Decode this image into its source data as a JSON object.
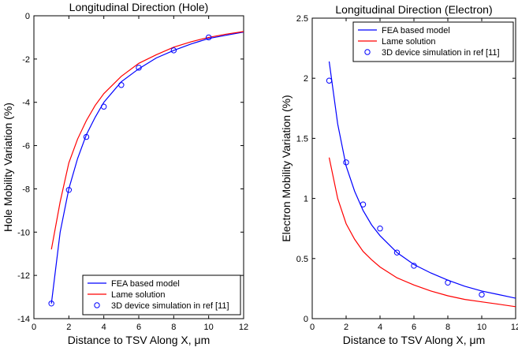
{
  "chart_data": [
    {
      "type": "line",
      "title": "Longitudinal Direction (Hole)",
      "xlabel": "Distance to TSV Along X, μm",
      "ylabel": "Hole Mobility Variation (%)",
      "xlim": [
        0,
        12
      ],
      "ylim": [
        -14,
        0
      ],
      "xticks": [
        0,
        2,
        4,
        6,
        8,
        10,
        12
      ],
      "yticks": [
        0,
        -2,
        -4,
        -6,
        -8,
        -10,
        -12,
        -14
      ],
      "xtick_labels": [
        "0",
        "2",
        "4",
        "6",
        "8",
        "10",
        "12"
      ],
      "ytick_labels": [
        "0",
        "-2",
        "-4",
        "-6",
        "-8",
        "-10",
        "-12",
        "-14"
      ],
      "grid": false,
      "legend_position": "bottom-right",
      "series": [
        {
          "name": "FEA based model",
          "style": "line",
          "color": "#0000ff",
          "x": [
            1,
            1.5,
            2,
            2.5,
            3,
            3.5,
            4,
            5,
            6,
            7,
            8,
            9,
            10,
            11,
            12
          ],
          "y": [
            -13.3,
            -10.0,
            -8.0,
            -6.6,
            -5.5,
            -4.7,
            -4.0,
            -3.05,
            -2.45,
            -1.95,
            -1.6,
            -1.3,
            -1.05,
            -0.9,
            -0.75
          ]
        },
        {
          "name": "Lame solution",
          "style": "line",
          "color": "#ff0000",
          "x": [
            1,
            1.5,
            2,
            2.5,
            3,
            3.5,
            4,
            5,
            6,
            7,
            8,
            9,
            10,
            11,
            12
          ],
          "y": [
            -10.8,
            -8.6,
            -6.8,
            -5.7,
            -4.85,
            -4.15,
            -3.6,
            -2.8,
            -2.2,
            -1.8,
            -1.45,
            -1.2,
            -1.0,
            -0.85,
            -0.73
          ]
        },
        {
          "name": "3D device simulation in ref [11]",
          "style": "marker",
          "color": "#0000ff",
          "x": [
            1,
            2,
            3,
            4,
            5,
            6,
            8,
            10
          ],
          "y": [
            -13.3,
            -8.05,
            -5.6,
            -4.2,
            -3.2,
            -2.4,
            -1.6,
            -1.0
          ]
        }
      ]
    },
    {
      "type": "line",
      "title": "Longitudinal Direction (Electron)",
      "xlabel": "Distance to TSV Along X, μm",
      "ylabel": "Electron Mobility Variation (%)",
      "xlim": [
        0,
        12
      ],
      "ylim": [
        0,
        2.5
      ],
      "xticks": [
        0,
        2,
        4,
        6,
        8,
        10,
        12
      ],
      "yticks": [
        0,
        0.5,
        1,
        1.5,
        2,
        2.5
      ],
      "xtick_labels": [
        "0",
        "2",
        "4",
        "6",
        "8",
        "10",
        "12"
      ],
      "ytick_labels": [
        "0",
        "0.5",
        "1",
        "1.5",
        "2",
        "2.5"
      ],
      "grid": false,
      "legend_position": "top-right",
      "series": [
        {
          "name": "FEA based model",
          "style": "line",
          "color": "#0000ff",
          "x": [
            1,
            1.5,
            2,
            2.5,
            3,
            3.5,
            4,
            5,
            6,
            7,
            8,
            9,
            10,
            11,
            12
          ],
          "y": [
            2.14,
            1.62,
            1.27,
            1.06,
            0.9,
            0.78,
            0.69,
            0.55,
            0.45,
            0.38,
            0.32,
            0.27,
            0.23,
            0.2,
            0.17
          ]
        },
        {
          "name": "Lame solution",
          "style": "line",
          "color": "#ff0000",
          "x": [
            1,
            1.5,
            2,
            2.5,
            3,
            3.5,
            4,
            5,
            6,
            7,
            8,
            9,
            10,
            11,
            12
          ],
          "y": [
            1.34,
            1.0,
            0.79,
            0.66,
            0.56,
            0.49,
            0.43,
            0.34,
            0.28,
            0.23,
            0.19,
            0.16,
            0.14,
            0.12,
            0.1
          ]
        },
        {
          "name": "3D device simulation in ref [11]",
          "style": "marker",
          "color": "#0000ff",
          "x": [
            1,
            2,
            3,
            4,
            5,
            6,
            8,
            10
          ],
          "y": [
            1.98,
            1.3,
            0.95,
            0.75,
            0.55,
            0.44,
            0.3,
            0.2
          ]
        }
      ]
    }
  ]
}
